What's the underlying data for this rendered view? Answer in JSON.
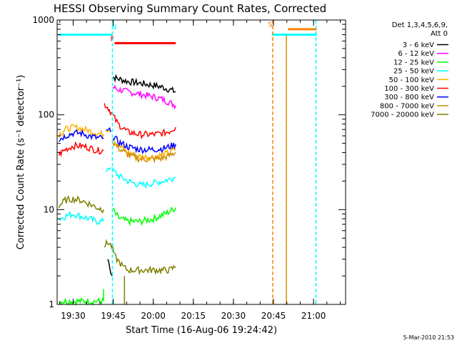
{
  "chart_data": {
    "type": "line",
    "title": "HESSI Observing Summary Count Rates, Corrected",
    "xlabel": "Start Time (16-Aug-06 19:24:42)",
    "ylabel": "Corrected Count Rate (s⁻¹ detector⁻¹)",
    "yscale": "log",
    "ylim": [
      1,
      1000
    ],
    "xlim_minutes": [
      19.4,
      21.2
    ],
    "x_unit_note": "x values are hours of 16-Aug-06 (UT)",
    "x_ticks": [
      {
        "label": "19:30",
        "t": 19.5
      },
      {
        "label": "19:45",
        "t": 19.75
      },
      {
        "label": "20:00",
        "t": 20.0
      },
      {
        "label": "20:15",
        "t": 20.25
      },
      {
        "label": "20:30",
        "t": 20.5
      },
      {
        "label": "20:45",
        "t": 20.75
      },
      {
        "label": "21:00",
        "t": 21.0
      }
    ],
    "y_ticks": [
      {
        "label": "1",
        "v": 1
      },
      {
        "label": "10",
        "v": 10
      },
      {
        "label": "100",
        "v": 100
      },
      {
        "label": "1000",
        "v": 1000
      }
    ],
    "legend_header": [
      "Det 1,3,4,5,6,9,",
      "Att 0"
    ],
    "legend_placement": "right",
    "grid": false,
    "series": [
      {
        "name": "3 - 6 keV",
        "color": "#000000",
        "segments": [
          [
            [
              19.716,
              3.0
            ],
            [
              19.728,
              2.6
            ],
            [
              19.735,
              2.2
            ],
            [
              19.743,
              2.0
            ]
          ],
          [
            [
              19.748,
              250
            ],
            [
              19.78,
              240
            ],
            [
              19.84,
              225
            ],
            [
              19.92,
              215
            ],
            [
              20.0,
              205
            ],
            [
              20.06,
              195
            ],
            [
              20.1,
              185
            ],
            [
              20.14,
              175
            ]
          ]
        ]
      },
      {
        "name": "6 - 12 keV",
        "color": "#ff00ff",
        "segments": [
          [
            [
              19.748,
              195
            ],
            [
              19.78,
              185
            ],
            [
              19.84,
              175
            ],
            [
              19.92,
              165
            ],
            [
              20.0,
              155
            ],
            [
              20.06,
              145
            ],
            [
              20.1,
              135
            ],
            [
              20.14,
              125
            ]
          ]
        ]
      },
      {
        "name": "12 - 25 keV",
        "color": "#00ff00",
        "segments": [
          [
            [
              19.412,
              1.08
            ],
            [
              19.69,
              1.08
            ],
            [
              19.69,
              1.45
            ]
          ],
          [
            [
              19.748,
              10
            ],
            [
              19.78,
              8.2
            ],
            [
              19.84,
              7.5
            ],
            [
              19.92,
              7.5
            ],
            [
              20.0,
              8.0
            ],
            [
              20.06,
              8.8
            ],
            [
              20.1,
              9.5
            ],
            [
              20.14,
              10.5
            ]
          ]
        ]
      },
      {
        "name": "25 - 50 keV",
        "color": "#00ffff",
        "segments": [
          [
            [
              19.412,
              8
            ],
            [
              19.45,
              8.5
            ],
            [
              19.5,
              9
            ],
            [
              19.55,
              8.5
            ],
            [
              19.6,
              8
            ],
            [
              19.65,
              7.5
            ],
            [
              19.69,
              7.5
            ]
          ],
          [
            [
              19.705,
              26
            ],
            [
              19.72,
              28
            ],
            [
              19.735,
              28
            ]
          ],
          [
            [
              19.748,
              26
            ],
            [
              19.78,
              23
            ],
            [
              19.84,
              20
            ],
            [
              19.92,
              18
            ],
            [
              20.0,
              19
            ],
            [
              20.06,
              20
            ],
            [
              20.1,
              21
            ],
            [
              20.14,
              22
            ]
          ]
        ]
      },
      {
        "name": "50 - 100 keV",
        "color": "#ffb000",
        "segments": [
          [
            [
              19.412,
              62
            ],
            [
              19.45,
              70
            ],
            [
              19.5,
              74
            ],
            [
              19.55,
              72
            ],
            [
              19.6,
              68
            ],
            [
              19.65,
              64
            ],
            [
              19.69,
              62
            ]
          ],
          [
            [
              19.705,
              70
            ],
            [
              19.72,
              72
            ],
            [
              19.735,
              70
            ]
          ],
          [
            [
              19.748,
              58
            ],
            [
              19.78,
              48
            ],
            [
              19.84,
              40
            ],
            [
              19.92,
              36
            ],
            [
              20.0,
              36
            ],
            [
              20.06,
              38
            ],
            [
              20.1,
              40
            ],
            [
              20.14,
              44
            ]
          ]
        ]
      },
      {
        "name": "100 - 300 keV",
        "color": "#ff0000",
        "segments": [
          [
            [
              19.412,
              38
            ],
            [
              19.45,
              43
            ],
            [
              19.5,
              47
            ],
            [
              19.55,
              47
            ],
            [
              19.6,
              45
            ],
            [
              19.65,
              42
            ],
            [
              19.69,
              42
            ]
          ],
          [
            [
              19.695,
              130
            ],
            [
              19.72,
              118
            ],
            [
              19.745,
              100
            ],
            [
              19.78,
              80
            ],
            [
              19.84,
              66
            ],
            [
              19.92,
              62
            ],
            [
              20.0,
              62
            ],
            [
              20.06,
              64
            ],
            [
              20.1,
              67
            ],
            [
              20.14,
              74
            ]
          ]
        ]
      },
      {
        "name": "300 - 800 keV",
        "color": "#0000ff",
        "segments": [
          [
            [
              19.412,
              55
            ],
            [
              19.45,
              60
            ],
            [
              19.5,
              64
            ],
            [
              19.55,
              64
            ],
            [
              19.6,
              60
            ],
            [
              19.65,
              57
            ],
            [
              19.69,
              57
            ]
          ],
          [
            [
              19.705,
              65
            ],
            [
              19.72,
              68
            ],
            [
              19.735,
              66
            ]
          ],
          [
            [
              19.748,
              60
            ],
            [
              19.78,
              52
            ],
            [
              19.84,
              46
            ],
            [
              19.92,
              43
            ],
            [
              20.0,
              43
            ],
            [
              20.06,
              44
            ],
            [
              20.1,
              46
            ],
            [
              20.14,
              49
            ]
          ]
        ]
      },
      {
        "name": "800 - 7000 keV",
        "color": "#d08c00",
        "segments": [
          [
            [
              19.748,
              52
            ],
            [
              19.78,
              45
            ],
            [
              19.84,
              38
            ],
            [
              19.92,
              34
            ],
            [
              20.0,
              34
            ],
            [
              20.06,
              35
            ],
            [
              20.1,
              37
            ],
            [
              20.14,
              40
            ]
          ],
          [
            [
              20.83,
              1.0
            ],
            [
              20.83,
              700
            ]
          ]
        ]
      },
      {
        "name": "7000 - 20000 keV",
        "color": "#808000",
        "segments": [
          [
            [
              19.412,
              11
            ],
            [
              19.45,
              12.5
            ],
            [
              19.5,
              13
            ],
            [
              19.55,
              12.5
            ],
            [
              19.6,
              11.5
            ],
            [
              19.65,
              10.5
            ],
            [
              19.69,
              10
            ]
          ],
          [
            [
              19.695,
              4.2
            ],
            [
              19.72,
              4.5
            ],
            [
              19.745,
              4.0
            ],
            [
              19.76,
              3.2
            ],
            [
              19.78,
              2.9
            ],
            [
              19.81,
              2.5
            ],
            [
              19.84,
              2.3
            ],
            [
              19.9,
              2.3
            ],
            [
              19.96,
              2.3
            ],
            [
              20.0,
              2.3
            ],
            [
              20.06,
              2.3
            ],
            [
              20.1,
              2.3
            ],
            [
              20.14,
              2.5
            ]
          ],
          [
            [
              19.82,
              1.0
            ],
            [
              19.82,
              2.0
            ]
          ]
        ]
      }
    ],
    "annotations": [
      {
        "label": "N",
        "t": 19.755,
        "y": 800,
        "color": "#00ffff"
      },
      {
        "label": "F",
        "t": 19.745,
        "y": 600,
        "color": "#ff0000"
      },
      {
        "label": "S",
        "t": 20.73,
        "y": 850,
        "color": "#ff8000"
      }
    ],
    "state_bars": [
      {
        "name": "night-bar",
        "color": "#00ffff",
        "y": 700,
        "t0": 19.412,
        "t1": 19.745
      },
      {
        "name": "flare-bar",
        "color": "#ff0000",
        "y": 570,
        "t0": 19.758,
        "t1": 20.14
      },
      {
        "name": "night-bar-2",
        "color": "#00ffff",
        "y": 700,
        "t0": 20.74,
        "t1": 21.02
      },
      {
        "name": "saa-bar",
        "color": "#ff8000",
        "y": 800,
        "t0": 20.84,
        "t1": 21.02
      }
    ],
    "vertical_markers": [
      {
        "name": "night-start-line",
        "t": 19.745,
        "color": "#00ffff",
        "dashed": true
      },
      {
        "name": "saa-start-line",
        "t": 20.745,
        "color": "#ff8000",
        "dashed": true
      },
      {
        "name": "saa-end-line",
        "t": 21.015,
        "color": "#00ffff",
        "dashed": true
      }
    ]
  },
  "footer": {
    "timestamp": "5-Mar-2010 21:53"
  }
}
